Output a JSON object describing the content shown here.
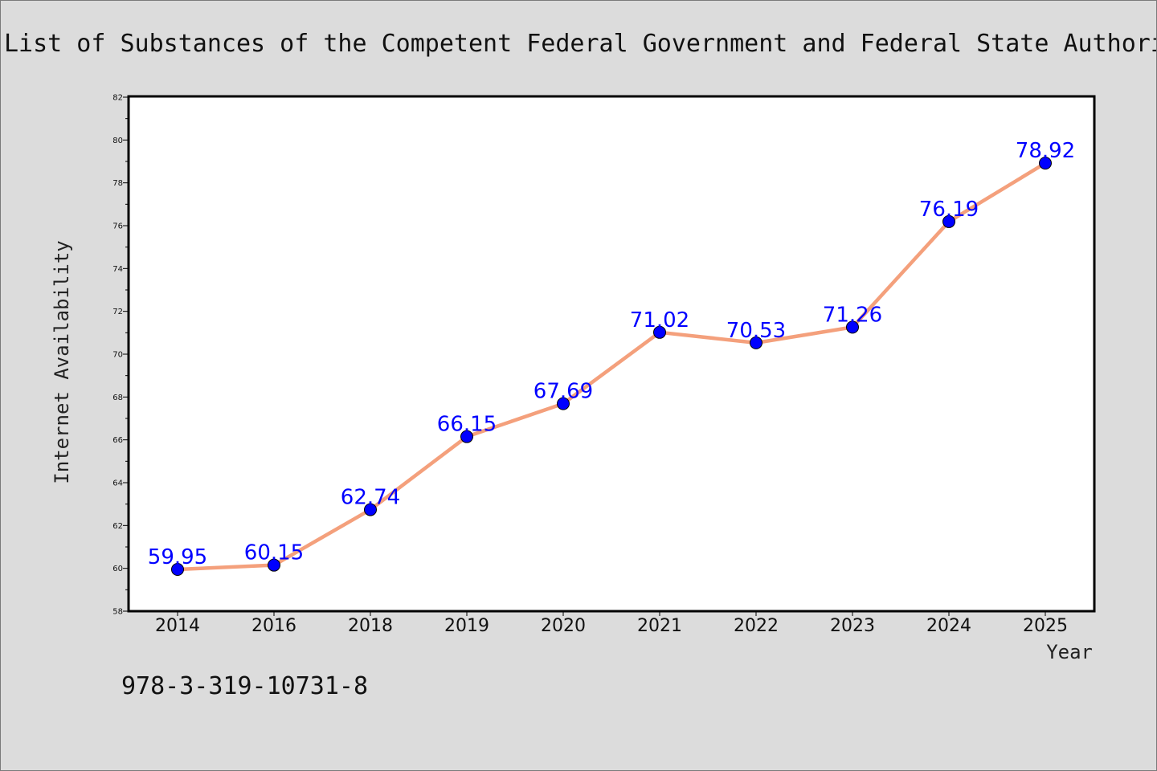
{
  "chart_data": {
    "type": "line",
    "title": "List of Substances of the Competent Federal Government and Federal State Authori",
    "xlabel": "Year",
    "ylabel": "Internet Availability",
    "categories": [
      "2014",
      "2016",
      "2018",
      "2019",
      "2020",
      "2021",
      "2022",
      "2023",
      "2024",
      "2025"
    ],
    "values": [
      59.95,
      60.15,
      62.74,
      66.15,
      67.69,
      71.02,
      70.53,
      71.26,
      76.19,
      78.92
    ],
    "data_labels": [
      "59.95",
      "60.15",
      "62.74",
      "66.15",
      "67.69",
      "71.02",
      "70.53",
      "71.26",
      "76.19",
      "78.92"
    ],
    "ylim": [
      58,
      82
    ],
    "yticks": [
      58,
      60,
      62,
      64,
      66,
      68,
      70,
      72,
      74,
      76,
      78,
      80,
      82
    ],
    "grid": false,
    "line_color": "#f4a07c",
    "marker_color": "#0000ff",
    "label_color": "#0000ff"
  },
  "footer": {
    "isbn": "978-3-319-10731-8"
  }
}
